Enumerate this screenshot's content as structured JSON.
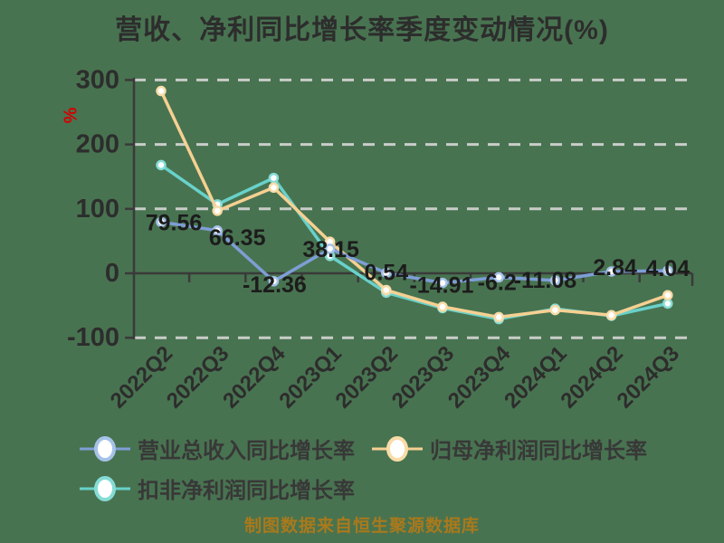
{
  "title": "营收、净利同比增长率季度变动情况(%)",
  "footer": {
    "note": "制图数据来自恒生聚源数据库"
  },
  "colors": {
    "background": "#487350",
    "axis": "#3a3a3a",
    "grid": "#c9cdc9",
    "tick_text": "#2d2d2d",
    "value_label_text": "#1c1c1c",
    "unit_text": "#d40000",
    "footer_text": "#a9791c"
  },
  "chart_data": {
    "type": "line",
    "title": "营收、净利同比增长率季度变动情况(%)",
    "xlabel": "",
    "ylabel": "%",
    "ylim": [
      -100,
      300
    ],
    "yticks": [
      300,
      200,
      100,
      0,
      -100
    ],
    "grid": "dashed-horizontal",
    "legend_position": "bottom-left",
    "categories": [
      "2022Q2",
      "2022Q3",
      "2022Q4",
      "2023Q1",
      "2023Q2",
      "2023Q3",
      "2023Q4",
      "2024Q1",
      "2024Q2",
      "2024Q3"
    ],
    "series": [
      {
        "name": "营业总收入同比增长率",
        "line_color": "#7e9ed6",
        "marker_ring_color": "#a6c2e8",
        "marker_fill": "#ffffff",
        "values": [
          79.56,
          66.35,
          -12.36,
          38.15,
          0.54,
          -14.91,
          -6.2,
          -11.08,
          2.84,
          4.04
        ],
        "value_labels": [
          "79.56",
          "66.35",
          "-12.36",
          "38.15",
          "0.54",
          "-14.91",
          "-6.2",
          "-11.08",
          "2.84",
          "4.04"
        ]
      },
      {
        "name": "归母净利润同比增长率",
        "line_color": "#f6d092",
        "marker_ring_color": "#f8dca8",
        "marker_fill": "#ffffff",
        "values": [
          283,
          97,
          133,
          49,
          -26,
          -52,
          -68,
          -57,
          -65,
          -34
        ],
        "value_labels": []
      },
      {
        "name": "扣非净利润同比增长率",
        "line_color": "#68d1ca",
        "marker_ring_color": "#85dcd5",
        "marker_fill": "#ffffff",
        "values": [
          168,
          107,
          148,
          27,
          -30,
          -54,
          -71,
          -55,
          -66,
          -47
        ],
        "value_labels": []
      }
    ]
  }
}
